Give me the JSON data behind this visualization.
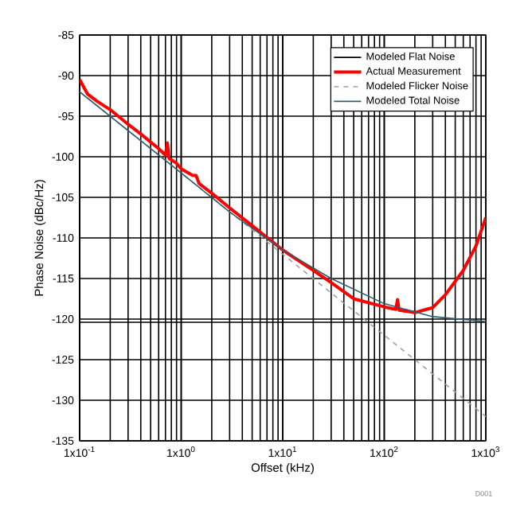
{
  "chart_data": {
    "type": "line",
    "xlabel": "Offset (kHz)",
    "ylabel": "Phase Noise (dBc/Hz)",
    "log": "x",
    "grid": true,
    "legend": "top right",
    "xlim": [
      0.1,
      1000
    ],
    "ylim": [
      -135,
      -85
    ],
    "xticks": [
      {
        "value": 0.1,
        "label": "1x10$^{-1}$"
      },
      {
        "value": 1,
        "label": "1x10$^{0}$"
      },
      {
        "value": 10,
        "label": "1x10$^{1}$"
      },
      {
        "value": 100,
        "label": "1x10$^{2}$"
      },
      {
        "value": 1000,
        "label": "1x10$^{3}$"
      }
    ],
    "yticks": [
      -135,
      -130,
      -125,
      -120,
      -115,
      -110,
      -105,
      -100,
      -95,
      -90,
      -85
    ],
    "series": [
      {
        "name": "Modeled Flat Noise",
        "color": "#000000",
        "x": [
          0.1,
          1000
        ],
        "values": [
          -120.4,
          -120.4
        ]
      },
      {
        "name": "Actual Measurement",
        "color": "#ff0000",
        "x": [
          0.1,
          0.12,
          0.15,
          0.2,
          0.3,
          0.4,
          0.6,
          0.7,
          0.73,
          0.76,
          0.9,
          1.0,
          1.3,
          1.4,
          1.5,
          2,
          3,
          5,
          10,
          20,
          30,
          50,
          100,
          130,
          135,
          140,
          200,
          260,
          300,
          400,
          600,
          800,
          1000
        ],
        "values": [
          -90.5,
          -92.3,
          -93.2,
          -94.2,
          -96,
          -97.2,
          -99,
          -99.8,
          -98.3,
          -100.2,
          -100.8,
          -101.5,
          -102.3,
          -102.3,
          -103.3,
          -104.5,
          -106.3,
          -108.5,
          -111.5,
          -114,
          -115.5,
          -117.5,
          -118.5,
          -118.8,
          -117.6,
          -118.9,
          -119.2,
          -118.8,
          -118.6,
          -117,
          -114,
          -111,
          -107.5
        ]
      },
      {
        "name": "Modeled Flicker Noise",
        "color": "#a0a0a0",
        "line_style": "dashed",
        "x": [
          0.1,
          1,
          10,
          100,
          1000
        ],
        "values": [
          -92,
          -102,
          -112,
          -122,
          -132
        ]
      },
      {
        "name": "Modeled Total Noise",
        "color": "#2f5f6f",
        "x": [
          0.1,
          1,
          3,
          10,
          30,
          100,
          300,
          1000
        ],
        "values": [
          -92,
          -102,
          -106.8,
          -111.5,
          -115,
          -118.1,
          -119.7,
          -120.3
        ]
      }
    ],
    "annotations": [
      "D001"
    ]
  }
}
